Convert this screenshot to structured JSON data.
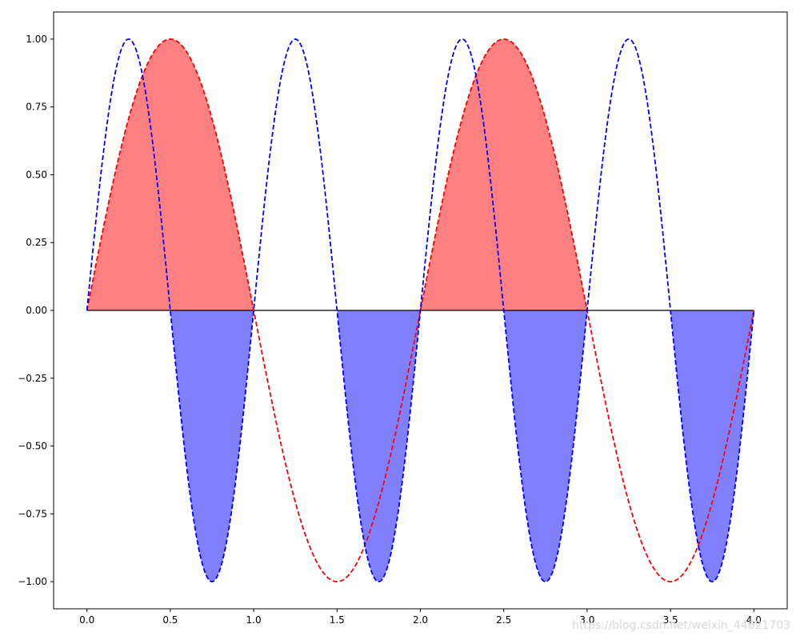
{
  "chart_data": {
    "type": "area",
    "title": "",
    "xlabel": "",
    "ylabel": "",
    "xlim": [
      -0.2,
      4.2
    ],
    "ylim": [
      -1.1,
      1.1
    ],
    "grid": false,
    "x_ticks": [
      0.0,
      0.5,
      1.0,
      1.5,
      2.0,
      2.5,
      3.0,
      3.5,
      4.0
    ],
    "x_tick_labels": [
      "0.0",
      "0.5",
      "1.0",
      "1.5",
      "2.0",
      "2.5",
      "3.0",
      "3.5",
      "4.0"
    ],
    "y_ticks": [
      1.0,
      0.75,
      0.5,
      0.25,
      0.0,
      -0.25,
      -0.5,
      -0.75,
      -1.0
    ],
    "y_tick_labels": [
      "1.00",
      "0.75",
      "0.50",
      "0.25",
      "0.00",
      "−0.25",
      "−0.50",
      "−0.75",
      "−1.00"
    ],
    "series": [
      {
        "function": "sin(pi*x)",
        "x_range": [
          0,
          4
        ],
        "color": "#ff0000",
        "linestyle": "dashed",
        "fill_where": "positive",
        "fill_color": "#ff8080",
        "x": [
          0,
          0.25,
          0.5,
          0.75,
          1.0,
          1.25,
          1.5,
          1.75,
          2.0,
          2.25,
          2.5,
          2.75,
          3.0,
          3.25,
          3.5,
          3.75,
          4.0
        ],
        "y": [
          0,
          0.71,
          1.0,
          0.71,
          0,
          -0.71,
          -1.0,
          -0.71,
          0,
          0.71,
          1.0,
          0.71,
          0,
          -0.71,
          -1.0,
          -0.71,
          0
        ]
      },
      {
        "function": "sin(2*pi*x)",
        "x_range": [
          0,
          4
        ],
        "color": "#0000ff",
        "linestyle": "dashed",
        "fill_where": "negative",
        "fill_color": "#8080ff",
        "x": [
          0,
          0.25,
          0.5,
          0.75,
          1.0,
          1.25,
          1.5,
          1.75,
          2.0,
          2.25,
          2.5,
          2.75,
          3.0,
          3.25,
          3.5,
          3.75,
          4.0
        ],
        "y": [
          0,
          1.0,
          0,
          -1.0,
          0,
          1.0,
          0,
          -1.0,
          0,
          1.0,
          0,
          -1.0,
          0,
          1.0,
          0,
          -1.0,
          0
        ]
      }
    ],
    "baseline": {
      "y": 0,
      "x_range": [
        0,
        4
      ],
      "color": "#000000"
    }
  },
  "watermark": {
    "text": "https://blog.csdn.net/weixin_44621703"
  }
}
